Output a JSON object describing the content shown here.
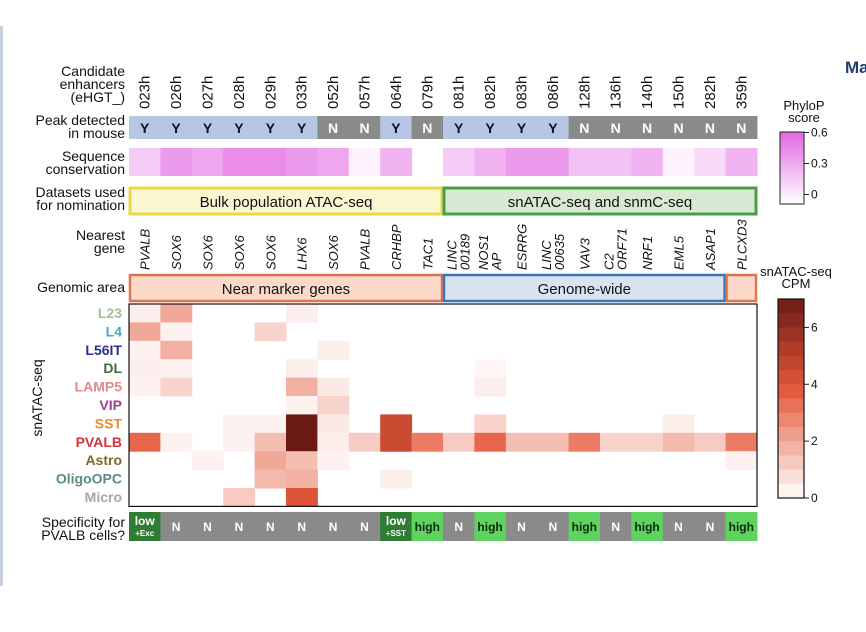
{
  "corner_text": "Ma",
  "chart_data": {
    "type": "heatmap",
    "row_labels": {
      "enhancers": [
        "Candidate",
        "enhancers",
        "(eHGT_)"
      ],
      "peak": [
        "Peak detected",
        "in mouse"
      ],
      "conservation": [
        "Sequence",
        "conservation"
      ],
      "datasets": [
        "Datasets used",
        "for nomination"
      ],
      "nearest": [
        "Nearest",
        "gene"
      ],
      "area": "Genomic area",
      "snatac_axis": "snATAC-seq",
      "specificity": [
        "Specificity for",
        "PVALB cells?"
      ]
    },
    "enhancers": [
      "023h",
      "026h",
      "027h",
      "028h",
      "029h",
      "033h",
      "052h",
      "057h",
      "064h",
      "079h",
      "081h",
      "082h",
      "083h",
      "086h",
      "128h",
      "136h",
      "140h",
      "150h",
      "282h",
      "359h"
    ],
    "peak_detected": [
      "Y",
      "Y",
      "Y",
      "Y",
      "Y",
      "Y",
      "N",
      "N",
      "Y",
      "N",
      "Y",
      "Y",
      "Y",
      "Y",
      "N",
      "N",
      "N",
      "N",
      "N",
      "N"
    ],
    "phylop_score": [
      0.2,
      0.4,
      0.35,
      0.45,
      0.45,
      0.4,
      0.35,
      0.05,
      0.3,
      null,
      0.2,
      0.3,
      0.4,
      0.4,
      0.25,
      0.25,
      0.3,
      0.05,
      0.15,
      0.3
    ],
    "datasets": [
      {
        "label": "Bulk population ATAC-seq",
        "start": 0,
        "end": 9,
        "color": "#e8d84a",
        "fill": "#fbf6d2"
      },
      {
        "label": "snATAC-seq and snmC-seq",
        "start": 10,
        "end": 19,
        "color": "#4a9e45",
        "fill": "#d8ead3"
      }
    ],
    "nearest_gene": [
      [
        "PVALB"
      ],
      [
        "SOX6"
      ],
      [
        "SOX6"
      ],
      [
        "SOX6"
      ],
      [
        "SOX6"
      ],
      [
        "LHX6"
      ],
      [
        "SOX6"
      ],
      [
        "PVALB"
      ],
      [
        "CRHBP"
      ],
      [
        "TAC1"
      ],
      [
        "LINC",
        "00189"
      ],
      [
        "NOS1",
        "AP"
      ],
      [
        "ESRRG"
      ],
      [
        "LINC",
        "00635"
      ],
      [
        "VAV3"
      ],
      [
        "C2",
        "ORF71"
      ],
      [
        "NRF1"
      ],
      [
        "EML5"
      ],
      [
        "ASAP1"
      ],
      [
        "PLCXD3"
      ]
    ],
    "genomic_area": [
      {
        "label": "Near marker genes",
        "start": 0,
        "end": 9,
        "color": "#e0744e",
        "fill": "#fcd9c8"
      },
      {
        "label": "Genome-wide",
        "start": 10,
        "end": 18,
        "color": "#3b75b8",
        "fill": "#d9e3f2"
      },
      {
        "label": "",
        "start": 19,
        "end": 19,
        "color": "#e0744e",
        "fill": "#fcd9c8"
      }
    ],
    "cell_types": [
      {
        "name": "L23",
        "color": "#9cc38a"
      },
      {
        "name": "L4",
        "color": "#3db0c1"
      },
      {
        "name": "L56IT",
        "color": "#2b2f88"
      },
      {
        "name": "DL",
        "color": "#3d6b3a"
      },
      {
        "name": "LAMP5",
        "color": "#e08a8a"
      },
      {
        "name": "VIP",
        "color": "#9b3f93"
      },
      {
        "name": "SST",
        "color": "#ec8b2a"
      },
      {
        "name": "PVALB",
        "color": "#d6323a"
      },
      {
        "name": "Astro",
        "color": "#7a6a2a"
      },
      {
        "name": "OligoOPC",
        "color": "#5d8a84"
      },
      {
        "name": "Micro",
        "color": "#a6a6a6"
      }
    ],
    "cpm_values": [
      [
        0.4,
        2.0,
        0,
        0,
        0,
        0.4,
        0,
        0,
        0,
        0,
        0,
        0,
        0,
        0,
        0,
        0,
        0,
        0,
        0,
        0
      ],
      [
        2.0,
        0.3,
        0,
        0,
        1.0,
        0,
        0,
        0,
        0,
        0,
        0,
        0,
        0,
        0,
        0,
        0,
        0,
        0,
        0,
        0
      ],
      [
        0.3,
        1.8,
        0,
        0,
        0,
        0,
        0.4,
        0,
        0,
        0,
        0,
        0,
        0,
        0,
        0,
        0,
        0,
        0,
        0,
        0
      ],
      [
        0.4,
        0.3,
        0,
        0,
        0,
        0.4,
        0,
        0,
        0,
        0,
        0,
        0.2,
        0,
        0,
        0,
        0,
        0,
        0,
        0,
        0
      ],
      [
        0.3,
        1.0,
        0,
        0,
        0,
        1.8,
        0.5,
        0,
        0,
        0,
        0,
        0.4,
        0,
        0,
        0,
        0,
        0,
        0,
        0,
        0
      ],
      [
        0,
        0,
        0,
        0,
        0,
        0.3,
        1.0,
        0,
        0,
        0,
        0,
        0,
        0,
        0,
        0,
        0,
        0,
        0,
        0,
        0
      ],
      [
        0,
        0,
        0,
        0.3,
        0.3,
        7.5,
        0.5,
        0,
        4.5,
        0,
        0,
        1.0,
        0,
        0,
        0,
        0,
        0,
        0.4,
        0,
        0
      ],
      [
        3.5,
        0.3,
        0,
        0.3,
        1.5,
        7.5,
        0.4,
        1.2,
        4.5,
        3.0,
        1.2,
        3.5,
        1.5,
        1.5,
        3.0,
        1.0,
        1.0,
        1.6,
        1.2,
        3.0
      ],
      [
        0,
        0,
        0.3,
        0,
        2.0,
        1.5,
        0.3,
        0,
        0,
        0,
        0,
        0,
        0,
        0,
        0,
        0,
        0,
        0,
        0,
        0.3
      ],
      [
        0,
        0,
        0,
        0,
        1.6,
        1.8,
        0,
        0,
        0.4,
        0,
        0,
        0,
        0,
        0,
        0,
        0,
        0,
        0,
        0,
        0
      ],
      [
        0,
        0,
        0,
        1.2,
        0,
        4.0,
        0,
        0,
        0,
        0,
        0,
        0,
        0,
        0,
        0,
        0,
        0,
        0,
        0,
        0
      ]
    ],
    "specificity": [
      {
        "text": "low",
        "sub": "+Exc",
        "level": "low"
      },
      {
        "text": "N",
        "sub": "",
        "level": "N"
      },
      {
        "text": "N",
        "sub": "",
        "level": "N"
      },
      {
        "text": "N",
        "sub": "",
        "level": "N"
      },
      {
        "text": "N",
        "sub": "",
        "level": "N"
      },
      {
        "text": "N",
        "sub": "",
        "level": "N"
      },
      {
        "text": "N",
        "sub": "",
        "level": "N"
      },
      {
        "text": "N",
        "sub": "",
        "level": "N"
      },
      {
        "text": "low",
        "sub": "+SST",
        "level": "low"
      },
      {
        "text": "high",
        "sub": "",
        "level": "high"
      },
      {
        "text": "N",
        "sub": "",
        "level": "N"
      },
      {
        "text": "high",
        "sub": "",
        "level": "high"
      },
      {
        "text": "N",
        "sub": "",
        "level": "N"
      },
      {
        "text": "N",
        "sub": "",
        "level": "N"
      },
      {
        "text": "high",
        "sub": "",
        "level": "high"
      },
      {
        "text": "N",
        "sub": "",
        "level": "N"
      },
      {
        "text": "high",
        "sub": "",
        "level": "high"
      },
      {
        "text": "N",
        "sub": "",
        "level": "N"
      },
      {
        "text": "N",
        "sub": "",
        "level": "N"
      },
      {
        "text": "high",
        "sub": "",
        "level": "high"
      }
    ],
    "phylop_legend": {
      "title": [
        "PhyloP",
        "score"
      ],
      "ticks": [
        "0.6",
        "0.3",
        "0"
      ],
      "range": [
        0,
        0.6
      ]
    },
    "cpm_legend": {
      "title": [
        "snATAC-seq",
        "CPM"
      ],
      "ticks": [
        "6",
        "4",
        "2",
        "0"
      ],
      "range": [
        0,
        7
      ]
    },
    "colors": {
      "peak_Y": "#b7c7e3",
      "peak_N": "#8a8a8a",
      "phylop_high": "#e267e2",
      "phylop_low": "#ffffff",
      "cpm_high": "#6b1a14",
      "cpm_mid": "#e4573a",
      "cpm_low": "#ffffff",
      "spec_low": "#2e7d32",
      "spec_N": "#8a8a8a",
      "spec_high": "#5fd35f"
    }
  }
}
